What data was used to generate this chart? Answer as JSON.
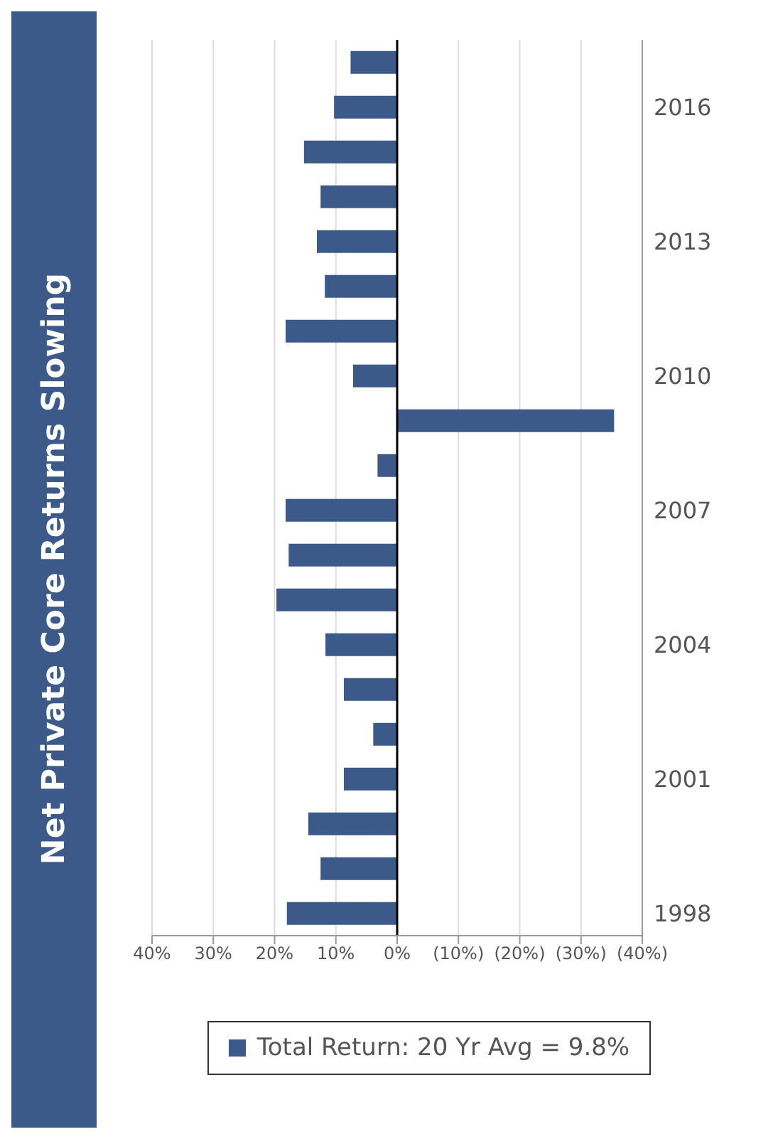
{
  "chart_data": {
    "type": "bar",
    "orientation": "horizontal",
    "title": "Net Private Core Returns Slowing",
    "categories": [
      null,
      "2016",
      null,
      null,
      "2013",
      null,
      null,
      "2010",
      null,
      null,
      "2007",
      null,
      null,
      "2004",
      null,
      null,
      "2001",
      null,
      null,
      "1998"
    ],
    "series": [
      {
        "name": "Total Return: 20 Yr Avg = 9.8%",
        "color": "#3b5a8a",
        "values": [
          7.6,
          10.3,
          15.2,
          12.5,
          13.1,
          11.8,
          18.2,
          7.2,
          -35.4,
          3.2,
          18.2,
          17.7,
          19.7,
          11.7,
          8.7,
          3.9,
          8.7,
          14.5,
          12.5,
          18.0
        ]
      }
    ],
    "xlim": [
      40,
      -40
    ],
    "xticks": [
      {
        "value": 40,
        "label": "40%"
      },
      {
        "value": 30,
        "label": "30%"
      },
      {
        "value": 20,
        "label": "20%"
      },
      {
        "value": 10,
        "label": "10%"
      },
      {
        "value": 0,
        "label": "0%"
      },
      {
        "value": -10,
        "label": "(10%)"
      },
      {
        "value": -20,
        "label": "(20%)"
      },
      {
        "value": -30,
        "label": "(30%)"
      },
      {
        "value": -40,
        "label": "(40%)"
      }
    ],
    "grid": "x",
    "legend": "bottom"
  }
}
